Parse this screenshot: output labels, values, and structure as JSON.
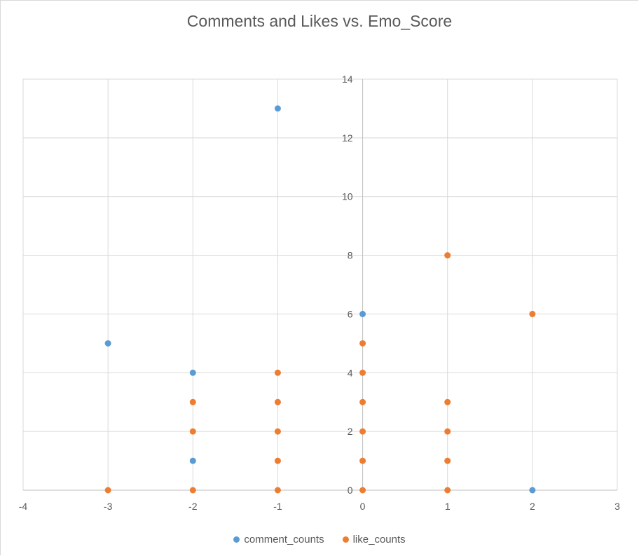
{
  "chart_data": {
    "type": "scatter",
    "title": "Comments and Likes vs. Emo_Score",
    "xlabel": "",
    "ylabel": "",
    "xlim": [
      -4,
      3
    ],
    "ylim": [
      0,
      14
    ],
    "x_ticks": [
      -4,
      -3,
      -2,
      -1,
      0,
      1,
      2,
      3
    ],
    "y_ticks": [
      0,
      2,
      4,
      6,
      8,
      10,
      12,
      14
    ],
    "grid": true,
    "legend_position": "bottom",
    "series": [
      {
        "name": "comment_counts",
        "color": "#5b9bd5",
        "points": [
          {
            "x": -3,
            "y": 5
          },
          {
            "x": -2,
            "y": 4
          },
          {
            "x": -2,
            "y": 1
          },
          {
            "x": -1,
            "y": 13
          },
          {
            "x": 0,
            "y": 6
          },
          {
            "x": 2,
            "y": 0
          }
        ]
      },
      {
        "name": "like_counts",
        "color": "#ed7d31",
        "points": [
          {
            "x": -3,
            "y": 0
          },
          {
            "x": -2,
            "y": 0
          },
          {
            "x": -2,
            "y": 2
          },
          {
            "x": -2,
            "y": 3
          },
          {
            "x": -1,
            "y": 0
          },
          {
            "x": -1,
            "y": 1
          },
          {
            "x": -1,
            "y": 2
          },
          {
            "x": -1,
            "y": 3
          },
          {
            "x": -1,
            "y": 4
          },
          {
            "x": 0,
            "y": 0
          },
          {
            "x": 0,
            "y": 1
          },
          {
            "x": 0,
            "y": 2
          },
          {
            "x": 0,
            "y": 3
          },
          {
            "x": 0,
            "y": 4
          },
          {
            "x": 0,
            "y": 5
          },
          {
            "x": 1,
            "y": 0
          },
          {
            "x": 1,
            "y": 1
          },
          {
            "x": 1,
            "y": 2
          },
          {
            "x": 1,
            "y": 3
          },
          {
            "x": 1,
            "y": 8
          },
          {
            "x": 2,
            "y": 6
          }
        ]
      }
    ]
  }
}
